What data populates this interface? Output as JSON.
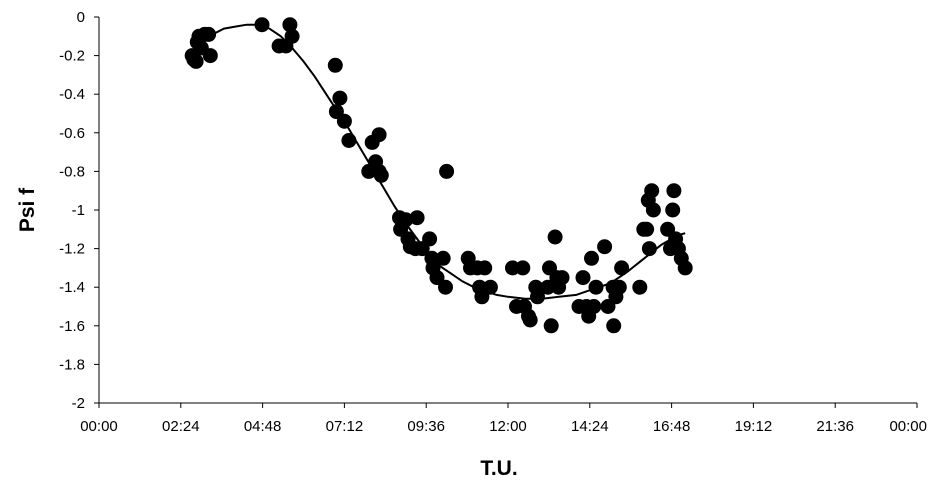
{
  "chart_data": {
    "type": "scatter",
    "title": "",
    "xlabel": "T.U.",
    "ylabel": "Psi f",
    "x_unit": "time of day (hh:mm)",
    "xlim": [
      "00:00",
      "24:00"
    ],
    "ylim": [
      -2,
      0
    ],
    "x_ticks": [
      "00:00",
      "02:24",
      "04:48",
      "07:12",
      "09:36",
      "12:00",
      "14:24",
      "16:48",
      "19:12",
      "21:36",
      "00:00"
    ],
    "y_ticks": [
      "0",
      "-0.2",
      "-0.4",
      "-0.6",
      "-0.8",
      "-1",
      "-1.2",
      "-1.4",
      "-1.6",
      "-1.8",
      "-2"
    ],
    "grid": false,
    "legend": "none",
    "colors": {
      "points": "#000000",
      "curve": "#000000",
      "axes": "#000000"
    },
    "series": [
      {
        "kind": "points",
        "points": [
          [
            "02:44",
            -0.2
          ],
          [
            "02:47",
            -0.22
          ],
          [
            "02:51",
            -0.23
          ],
          [
            "02:53",
            -0.13
          ],
          [
            "02:56",
            -0.1
          ],
          [
            "03:00",
            -0.16
          ],
          [
            "03:06",
            -0.09
          ],
          [
            "03:13",
            -0.09
          ],
          [
            "03:16",
            -0.2
          ],
          [
            "04:47",
            -0.04
          ],
          [
            "05:17",
            -0.15
          ],
          [
            "05:29",
            -0.15
          ],
          [
            "05:36",
            -0.04
          ],
          [
            "05:40",
            -0.1
          ],
          [
            "06:56",
            -0.25
          ],
          [
            "06:58",
            -0.49
          ],
          [
            "07:04",
            -0.42
          ],
          [
            "07:12",
            -0.54
          ],
          [
            "07:20",
            -0.64
          ],
          [
            "07:55",
            -0.8
          ],
          [
            "08:01",
            -0.65
          ],
          [
            "08:07",
            -0.75
          ],
          [
            "08:13",
            -0.61
          ],
          [
            "08:13",
            -0.8
          ],
          [
            "08:17",
            -0.82
          ],
          [
            "08:49",
            -1.04
          ],
          [
            "08:51",
            -1.1
          ],
          [
            "09:00",
            -1.05
          ],
          [
            "09:04",
            -1.15
          ],
          [
            "09:08",
            -1.19
          ],
          [
            "09:17",
            -1.2
          ],
          [
            "09:20",
            -1.04
          ],
          [
            "09:29",
            -1.2
          ],
          [
            "09:42",
            -1.15
          ],
          [
            "09:46",
            -1.25
          ],
          [
            "09:48",
            -1.3
          ],
          [
            "09:55",
            -1.35
          ],
          [
            "10:06",
            -1.25
          ],
          [
            "10:10",
            -1.4
          ],
          [
            "10:12",
            -0.8
          ],
          [
            "10:50",
            -1.25
          ],
          [
            "10:54",
            -1.3
          ],
          [
            "11:06",
            -1.3
          ],
          [
            "11:10",
            -1.4
          ],
          [
            "11:14",
            -1.45
          ],
          [
            "11:19",
            -1.3
          ],
          [
            "11:29",
            -1.4
          ],
          [
            "12:08",
            -1.3
          ],
          [
            "12:15",
            -1.5
          ],
          [
            "12:26",
            -1.3
          ],
          [
            "12:29",
            -1.5
          ],
          [
            "12:36",
            -1.55
          ],
          [
            "12:39",
            -1.57
          ],
          [
            "12:49",
            -1.4
          ],
          [
            "12:52",
            -1.45
          ],
          [
            "13:10",
            -1.4
          ],
          [
            "13:13",
            -1.3
          ],
          [
            "13:16",
            -1.6
          ],
          [
            "13:23",
            -1.14
          ],
          [
            "13:26",
            -1.35
          ],
          [
            "13:29",
            -1.4
          ],
          [
            "13:35",
            -1.35
          ],
          [
            "14:05",
            -1.5
          ],
          [
            "14:12",
            -1.35
          ],
          [
            "14:18",
            -1.5
          ],
          [
            "14:22",
            -1.55
          ],
          [
            "14:27",
            -1.25
          ],
          [
            "14:31",
            -1.5
          ],
          [
            "14:35",
            -1.4
          ],
          [
            "14:50",
            -1.19
          ],
          [
            "14:56",
            -1.5
          ],
          [
            "15:05",
            -1.4
          ],
          [
            "15:06",
            -1.6
          ],
          [
            "15:10",
            -1.45
          ],
          [
            "15:16",
            -1.4
          ],
          [
            "15:20",
            -1.3
          ],
          [
            "15:52",
            -1.4
          ],
          [
            "15:59",
            -1.1
          ],
          [
            "16:04",
            -1.1
          ],
          [
            "16:07",
            -0.95
          ],
          [
            "16:09",
            -1.2
          ],
          [
            "16:13",
            -0.9
          ],
          [
            "16:16",
            -1.0
          ],
          [
            "16:41",
            -1.1
          ],
          [
            "16:46",
            -1.2
          ],
          [
            "16:50",
            -1.0
          ],
          [
            "16:52",
            -0.9
          ],
          [
            "16:55",
            -1.15
          ],
          [
            "17:00",
            -1.2
          ],
          [
            "17:05",
            -1.25
          ],
          [
            "17:12",
            -1.3
          ]
        ]
      },
      {
        "kind": "trend-line",
        "points": [
          [
            "02:40",
            -0.2
          ],
          [
            "03:00",
            -0.14
          ],
          [
            "03:20",
            -0.09
          ],
          [
            "03:40",
            -0.06
          ],
          [
            "04:00",
            -0.05
          ],
          [
            "04:20",
            -0.04
          ],
          [
            "04:40",
            -0.04
          ],
          [
            "05:00",
            -0.06
          ],
          [
            "05:20",
            -0.1
          ],
          [
            "05:40",
            -0.16
          ],
          [
            "06:00",
            -0.23
          ],
          [
            "06:20",
            -0.31
          ],
          [
            "06:40",
            -0.4
          ],
          [
            "07:00",
            -0.49
          ],
          [
            "07:20",
            -0.58
          ],
          [
            "07:40",
            -0.68
          ],
          [
            "08:00",
            -0.78
          ],
          [
            "08:20",
            -0.88
          ],
          [
            "08:40",
            -0.98
          ],
          [
            "09:00",
            -1.07
          ],
          [
            "09:20",
            -1.15
          ],
          [
            "09:40",
            -1.23
          ],
          [
            "10:00",
            -1.29
          ],
          [
            "10:20",
            -1.33
          ],
          [
            "10:40",
            -1.37
          ],
          [
            "11:00",
            -1.4
          ],
          [
            "11:20",
            -1.42
          ],
          [
            "11:40",
            -1.44
          ],
          [
            "12:00",
            -1.45
          ],
          [
            "12:30",
            -1.46
          ],
          [
            "13:00",
            -1.46
          ],
          [
            "13:30",
            -1.45
          ],
          [
            "14:00",
            -1.44
          ],
          [
            "14:30",
            -1.41
          ],
          [
            "15:00",
            -1.38
          ],
          [
            "15:30",
            -1.32
          ],
          [
            "16:00",
            -1.25
          ],
          [
            "16:30",
            -1.18
          ],
          [
            "17:00",
            -1.13
          ],
          [
            "17:12",
            -1.12
          ]
        ]
      }
    ]
  }
}
